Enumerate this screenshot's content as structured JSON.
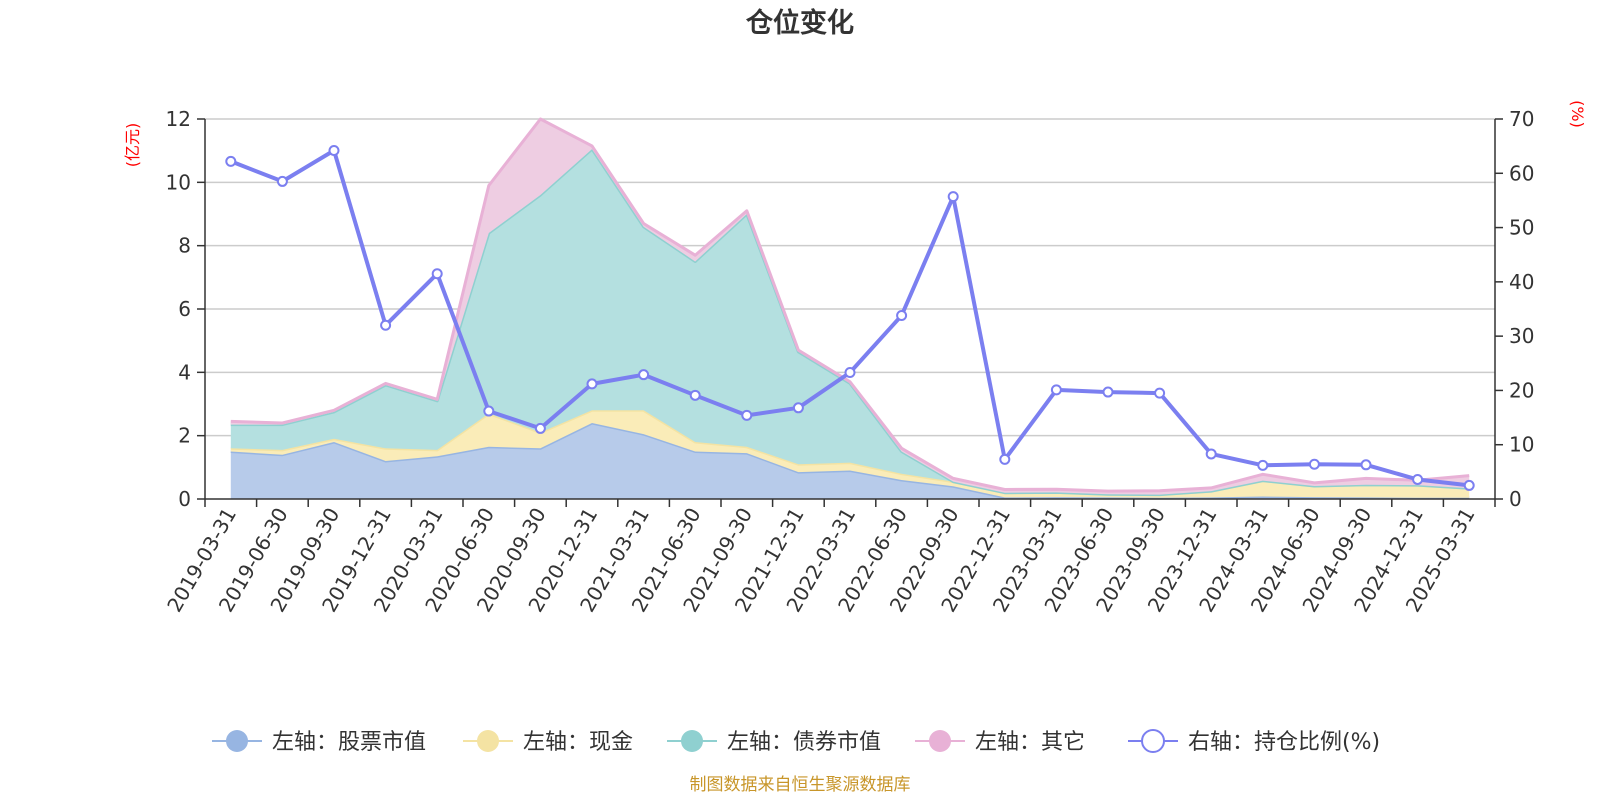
{
  "chart_data": {
    "type": "area",
    "title": "仓位变化",
    "left_axis_unit": "(亿元)",
    "right_axis_unit": "(%)",
    "left_ylim": [
      0,
      12
    ],
    "left_ticks": [
      "0",
      "2",
      "4",
      "6",
      "8",
      "10",
      "12"
    ],
    "right_ylim": [
      0,
      70
    ],
    "right_ticks": [
      "0",
      "10",
      "20",
      "30",
      "40",
      "50",
      "60",
      "70"
    ],
    "grid": true,
    "legend_position": "bottom",
    "categories": [
      "2019-03-31",
      "2019-06-30",
      "2019-09-30",
      "2019-12-31",
      "2020-03-31",
      "2020-06-30",
      "2020-09-30",
      "2020-12-31",
      "2021-03-31",
      "2021-06-30",
      "2021-09-30",
      "2021-12-31",
      "2022-03-31",
      "2022-06-30",
      "2022-09-30",
      "2022-12-31",
      "2023-03-31",
      "2023-06-30",
      "2023-09-30",
      "2023-12-31",
      "2024-03-31",
      "2024-06-30",
      "2024-09-30",
      "2024-12-31",
      "2025-03-31"
    ],
    "series": [
      {
        "name": "左轴：股票市值",
        "axis": "left",
        "kind": "stacked-area",
        "color": "#97b5e2",
        "fill": "#b7cbea",
        "values": [
          1.5,
          1.4,
          1.8,
          1.2,
          1.35,
          1.65,
          1.6,
          2.4,
          2.05,
          1.5,
          1.45,
          0.85,
          0.9,
          0.6,
          0.4,
          0.05,
          0.06,
          0.05,
          0.04,
          0.05,
          0.08,
          0.06,
          0.05,
          0.04,
          0.04
        ]
      },
      {
        "name": "左轴：现金",
        "axis": "left",
        "kind": "stacked-area",
        "color": "#f4e3a3",
        "fill": "#faecb8",
        "values": [
          0.1,
          0.15,
          0.1,
          0.4,
          0.2,
          1.05,
          0.5,
          0.4,
          0.75,
          0.3,
          0.2,
          0.25,
          0.25,
          0.2,
          0.15,
          0.15,
          0.15,
          0.1,
          0.1,
          0.2,
          0.5,
          0.35,
          0.4,
          0.4,
          0.3
        ]
      },
      {
        "name": "左轴：债券市值",
        "axis": "left",
        "kind": "stacked-area",
        "color": "#8fd0d0",
        "fill": "#b4e0e0",
        "values": [
          0.75,
          0.8,
          0.85,
          2.0,
          1.55,
          5.7,
          7.5,
          8.25,
          5.8,
          5.7,
          7.35,
          3.55,
          2.5,
          0.7,
          0.0,
          0.0,
          0.0,
          0.0,
          0.0,
          0.0,
          0.0,
          0.0,
          0.0,
          0.0,
          0.0
        ]
      },
      {
        "name": "左轴：其它",
        "axis": "left",
        "kind": "stacked-area",
        "color": "#e8b1d6",
        "fill": "#eecde2",
        "values": [
          0.1,
          0.05,
          0.05,
          0.05,
          0.05,
          1.5,
          2.4,
          0.1,
          0.1,
          0.2,
          0.1,
          0.05,
          0.05,
          0.1,
          0.1,
          0.1,
          0.1,
          0.1,
          0.12,
          0.1,
          0.2,
          0.1,
          0.2,
          0.15,
          0.4
        ]
      },
      {
        "name": "右轴：持仓比例(%)",
        "axis": "right",
        "kind": "line",
        "color": "#7b7ff0",
        "values": [
          62.2,
          58.5,
          64.2,
          32.0,
          41.5,
          16.2,
          13.0,
          21.2,
          22.9,
          19.1,
          15.4,
          16.8,
          23.3,
          33.8,
          55.7,
          7.3,
          20.1,
          19.7,
          19.5,
          8.3,
          6.2,
          6.4,
          6.3,
          3.6,
          2.5
        ]
      }
    ]
  },
  "footer": {
    "source": "制图数据来自恒生聚源数据库"
  }
}
